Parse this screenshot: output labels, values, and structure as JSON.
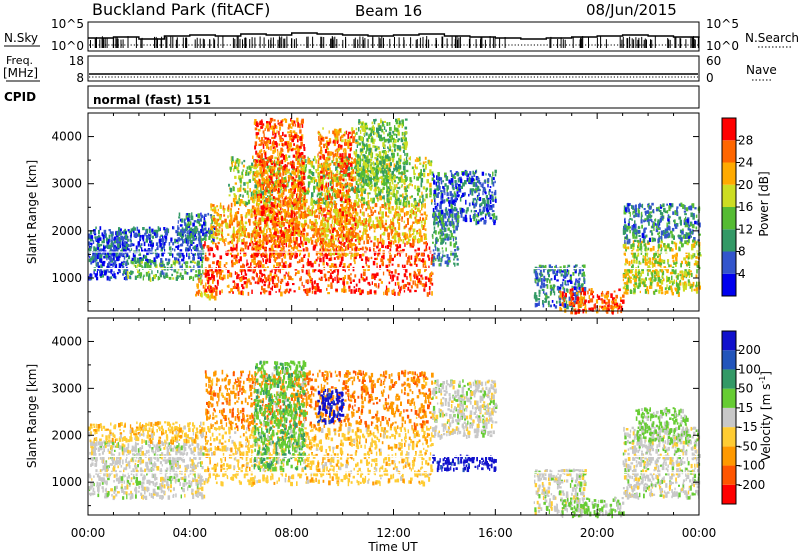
{
  "header": {
    "station": "Buckland Park (fitACF)",
    "beam": "Beam 16",
    "date": "08/Jun/2015"
  },
  "top_panels": {
    "nsky": {
      "label": "N.Sky",
      "right_label": "N.Search",
      "ticks_left": [
        "10^5",
        "10^0"
      ],
      "ticks_right": [
        "10^5",
        "10^0"
      ]
    },
    "freq": {
      "label_line1": "Freq.",
      "label_line2": "[MHz]",
      "ticks_left": [
        "18",
        "8"
      ],
      "right_label": "Nave",
      "ticks_right": [
        "60",
        "0"
      ]
    },
    "cpid": {
      "label": "CPID",
      "text": "normal (fast) 151"
    }
  },
  "chart_data": [
    {
      "type": "heatmap",
      "name": "power",
      "ylabel": "Slant Range [km]",
      "ylim": [
        300,
        4500
      ],
      "yticks": [
        1000,
        2000,
        3000,
        4000
      ],
      "xlim": [
        0,
        24
      ],
      "colorbar": {
        "label": "Power [dB]",
        "ticks": [
          4,
          8,
          12,
          16,
          20,
          24,
          28
        ],
        "range": [
          0,
          32
        ],
        "colors": [
          "#0000ee",
          "#3355cc",
          "#339966",
          "#55bb33",
          "#ccdd22",
          "#ffaa00",
          "#ff6600",
          "#ff0000"
        ]
      },
      "regions": [
        {
          "t0": 0.0,
          "t1": 1.5,
          "r0": 1000,
          "r1": 2000,
          "v": 5
        },
        {
          "t0": 1.5,
          "t1": 4.5,
          "r0": 1000,
          "r1": 1400,
          "v": 12
        },
        {
          "t0": 0.0,
          "t1": 4.5,
          "r0": 1400,
          "r1": 2100,
          "v": 6
        },
        {
          "t0": 3.5,
          "t1": 5.0,
          "r0": 1800,
          "r1": 2400,
          "v": 8
        },
        {
          "t0": 4.2,
          "t1": 5.0,
          "r0": 600,
          "r1": 1000,
          "v": 22
        },
        {
          "t0": 4.5,
          "t1": 13.5,
          "r0": 700,
          "r1": 1800,
          "v": 28
        },
        {
          "t0": 4.8,
          "t1": 13.3,
          "r0": 1800,
          "r1": 2600,
          "v": 22
        },
        {
          "t0": 5.5,
          "t1": 13.5,
          "r0": 2600,
          "r1": 3600,
          "v": 16
        },
        {
          "t0": 6.5,
          "t1": 8.5,
          "r0": 1500,
          "r1": 4400,
          "v": 26
        },
        {
          "t0": 9.0,
          "t1": 10.5,
          "r0": 1500,
          "r1": 4200,
          "v": 24
        },
        {
          "t0": 10.5,
          "t1": 12.5,
          "r0": 2800,
          "r1": 4400,
          "v": 14
        },
        {
          "t0": 13.5,
          "t1": 16.0,
          "r0": 2200,
          "r1": 3300,
          "v": 7
        },
        {
          "t0": 13.5,
          "t1": 14.5,
          "r0": 1300,
          "r1": 2400,
          "v": 10
        },
        {
          "t0": 17.5,
          "t1": 19.5,
          "r0": 400,
          "r1": 1300,
          "v": 8
        },
        {
          "t0": 18.5,
          "t1": 21.0,
          "r0": 300,
          "r1": 800,
          "v": 27
        },
        {
          "t0": 21.0,
          "t1": 24.0,
          "r0": 700,
          "r1": 1800,
          "v": 18
        },
        {
          "t0": 21.0,
          "t1": 24.0,
          "r0": 1800,
          "r1": 2600,
          "v": 9
        }
      ]
    },
    {
      "type": "heatmap",
      "name": "velocity",
      "ylabel": "Slant Range [km]",
      "ylim": [
        300,
        4500
      ],
      "yticks": [
        1000,
        2000,
        3000,
        4000
      ],
      "xlim": [
        0,
        24
      ],
      "xticks": [
        "00:00",
        "04:00",
        "08:00",
        "12:00",
        "16:00",
        "20:00",
        "00:00"
      ],
      "xlabel": "Time UT",
      "colorbar": {
        "label": "Velocity [m s^-1]",
        "ticks": [
          200,
          100,
          50,
          15,
          -15,
          -50,
          -100,
          -200
        ],
        "range": [
          -250,
          250
        ],
        "colors": [
          "#ff0000",
          "#ff5500",
          "#ff9900",
          "#ffcc33",
          "#c8c8c8",
          "#66cc33",
          "#339966",
          "#2255bb",
          "#1111cc"
        ]
      },
      "regions": [
        {
          "t0": 0.0,
          "t1": 4.5,
          "r0": 700,
          "r1": 1900,
          "v": 0
        },
        {
          "t0": 0.0,
          "t1": 4.5,
          "r0": 1900,
          "r1": 2300,
          "v": -60
        },
        {
          "t0": 4.5,
          "t1": 13.5,
          "r0": 1000,
          "r1": 2200,
          "v": -60
        },
        {
          "t0": 4.5,
          "t1": 13.5,
          "r0": 2200,
          "r1": 3400,
          "v": -120
        },
        {
          "t0": 6.5,
          "t1": 8.5,
          "r0": 1300,
          "r1": 3600,
          "v": 60
        },
        {
          "t0": 9.0,
          "t1": 10.0,
          "r0": 2300,
          "r1": 3000,
          "v": 220
        },
        {
          "t0": 13.5,
          "t1": 16.0,
          "r0": 1300,
          "r1": 1600,
          "v": 230
        },
        {
          "t0": 13.5,
          "t1": 16.0,
          "r0": 2000,
          "r1": 3200,
          "v": 0
        },
        {
          "t0": 17.5,
          "t1": 19.5,
          "r0": 400,
          "r1": 1300,
          "v": 0
        },
        {
          "t0": 18.5,
          "t1": 21.0,
          "r0": 300,
          "r1": 700,
          "v": 40
        },
        {
          "t0": 21.0,
          "t1": 24.0,
          "r0": 700,
          "r1": 2200,
          "v": 0
        },
        {
          "t0": 21.5,
          "t1": 23.5,
          "r0": 1900,
          "r1": 2600,
          "v": 40
        }
      ]
    }
  ]
}
